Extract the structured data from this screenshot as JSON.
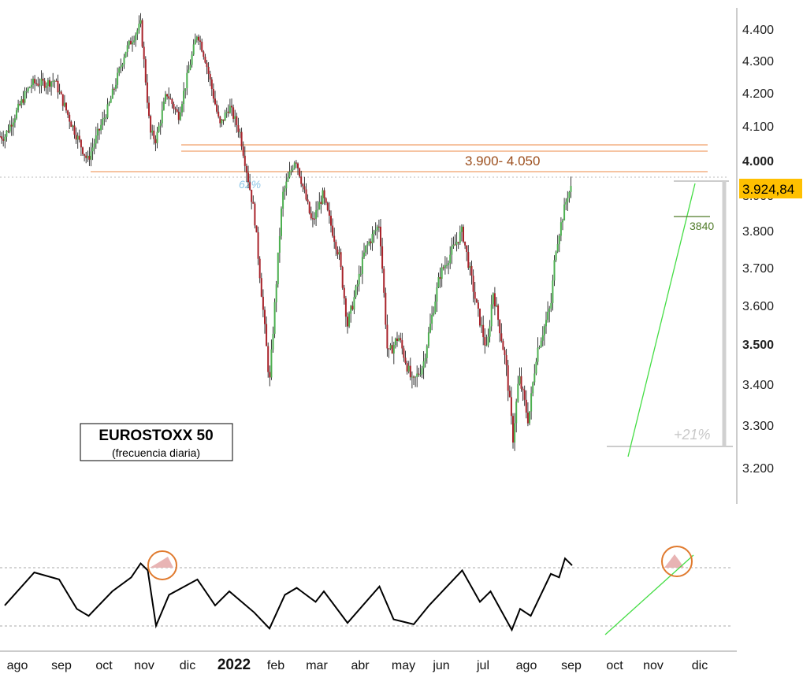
{
  "chart_data": [
    {
      "type": "candlestick",
      "title": "EUROSTOXX 50",
      "subtitle": "(frecuencia diaria)",
      "ylim": [
        3130,
        4480
      ],
      "y_ticks": [
        "4.400",
        "4.300",
        "4.200",
        "4.100",
        "4.000",
        "3.900",
        "3.800",
        "3.700",
        "3.600",
        "3.500",
        "3.400",
        "3.300",
        "3.200"
      ],
      "y_tick_values": [
        4400,
        4300,
        4200,
        4100,
        4000,
        3900,
        3800,
        3700,
        3600,
        3500,
        3400,
        3300,
        3200
      ],
      "bold_ticks": [
        "4.000",
        "3.500"
      ],
      "x_ticks": [
        "ago",
        "sep",
        "oct",
        "nov",
        "dic",
        "2022",
        "feb",
        "mar",
        "abr",
        "may",
        "jun",
        "jul",
        "ago",
        "sep",
        "oct",
        "nov",
        "dic"
      ],
      "bold_x_ticks": [
        "2022"
      ],
      "last_price": {
        "label": "3.924,84",
        "value": 3924.84
      },
      "price_path": [
        [
          "2021-07-26",
          4070
        ],
        [
          "2021-08-13",
          4200
        ],
        [
          "2021-08-18",
          4230
        ],
        [
          "2021-08-30",
          4230
        ],
        [
          "2021-09-06",
          4240
        ],
        [
          "2021-09-20",
          4110
        ],
        [
          "2021-10-04",
          4000
        ],
        [
          "2021-10-22",
          4160
        ],
        [
          "2021-11-05",
          4330
        ],
        [
          "2021-11-18",
          4415
        ],
        [
          "2021-11-26",
          4080
        ],
        [
          "2021-12-01",
          4060
        ],
        [
          "2021-12-10",
          4200
        ],
        [
          "2021-12-20",
          4130
        ],
        [
          "2022-01-05",
          4390
        ],
        [
          "2022-01-12",
          4300
        ],
        [
          "2022-01-24",
          4100
        ],
        [
          "2022-02-01",
          4160
        ],
        [
          "2022-02-10",
          4080
        ],
        [
          "2022-02-22",
          3850
        ],
        [
          "2022-03-07",
          3400
        ],
        [
          "2022-03-18",
          3900
        ],
        [
          "2022-03-29",
          4010
        ],
        [
          "2022-04-12",
          3820
        ],
        [
          "2022-04-21",
          3900
        ],
        [
          "2022-05-05",
          3730
        ],
        [
          "2022-05-12",
          3550
        ],
        [
          "2022-05-20",
          3650
        ],
        [
          "2022-05-27",
          3750
        ],
        [
          "2022-06-08",
          3820
        ],
        [
          "2022-06-15",
          3470
        ],
        [
          "2022-06-24",
          3520
        ],
        [
          "2022-07-06",
          3400
        ],
        [
          "2022-07-15",
          3450
        ],
        [
          "2022-07-29",
          3680
        ],
        [
          "2022-08-17",
          3800
        ],
        [
          "2022-08-29",
          3600
        ],
        [
          "2022-09-07",
          3480
        ],
        [
          "2022-09-12",
          3640
        ],
        [
          "2022-09-23",
          3450
        ],
        [
          "2022-09-29",
          3270
        ],
        [
          "2022-10-04",
          3420
        ],
        [
          "2022-10-12",
          3310
        ],
        [
          "2022-10-19",
          3480
        ],
        [
          "2022-10-31",
          3600
        ],
        [
          "2022-11-04",
          3750
        ],
        [
          "2022-11-10",
          3840
        ],
        [
          "2022-11-14",
          3900
        ],
        [
          "2022-11-18",
          3925
        ]
      ],
      "annotations": {
        "resistance_zone_label": "3.900- 4.050",
        "resistance_levels": [
          4050,
          4030,
          3960
        ],
        "retracement_label": "62%",
        "support_label": "3840",
        "gain_label": "+21%",
        "measure_from": 3250,
        "measure_to": 3940
      }
    },
    {
      "type": "line",
      "name": "oscillator",
      "highlights": [
        "nov 2021 peak",
        "nov 2022 peak"
      ],
      "points": [
        [
          "2021-07-26",
          0.35
        ],
        [
          "2021-08-20",
          0.82
        ],
        [
          "2021-09-10",
          0.72
        ],
        [
          "2021-09-25",
          0.3
        ],
        [
          "2021-10-05",
          0.2
        ],
        [
          "2021-10-25",
          0.55
        ],
        [
          "2021-11-10",
          0.75
        ],
        [
          "2021-11-18",
          0.95
        ],
        [
          "2021-11-24",
          0.85
        ],
        [
          "2021-12-01",
          0.06
        ],
        [
          "2021-12-12",
          0.5
        ],
        [
          "2022-01-05",
          0.72
        ],
        [
          "2022-01-20",
          0.35
        ],
        [
          "2022-02-01",
          0.55
        ],
        [
          "2022-02-22",
          0.25
        ],
        [
          "2022-03-07",
          0.02
        ],
        [
          "2022-03-20",
          0.5
        ],
        [
          "2022-03-30",
          0.6
        ],
        [
          "2022-04-15",
          0.4
        ],
        [
          "2022-04-22",
          0.55
        ],
        [
          "2022-05-12",
          0.1
        ],
        [
          "2022-06-08",
          0.62
        ],
        [
          "2022-06-20",
          0.15
        ],
        [
          "2022-07-07",
          0.08
        ],
        [
          "2022-07-20",
          0.35
        ],
        [
          "2022-08-17",
          0.85
        ],
        [
          "2022-09-01",
          0.4
        ],
        [
          "2022-09-10",
          0.55
        ],
        [
          "2022-09-28",
          0.0
        ],
        [
          "2022-10-05",
          0.3
        ],
        [
          "2022-10-14",
          0.2
        ],
        [
          "2022-10-31",
          0.8
        ],
        [
          "2022-11-07",
          0.75
        ],
        [
          "2022-11-12",
          1.02
        ],
        [
          "2022-11-18",
          0.92
        ]
      ]
    }
  ]
}
